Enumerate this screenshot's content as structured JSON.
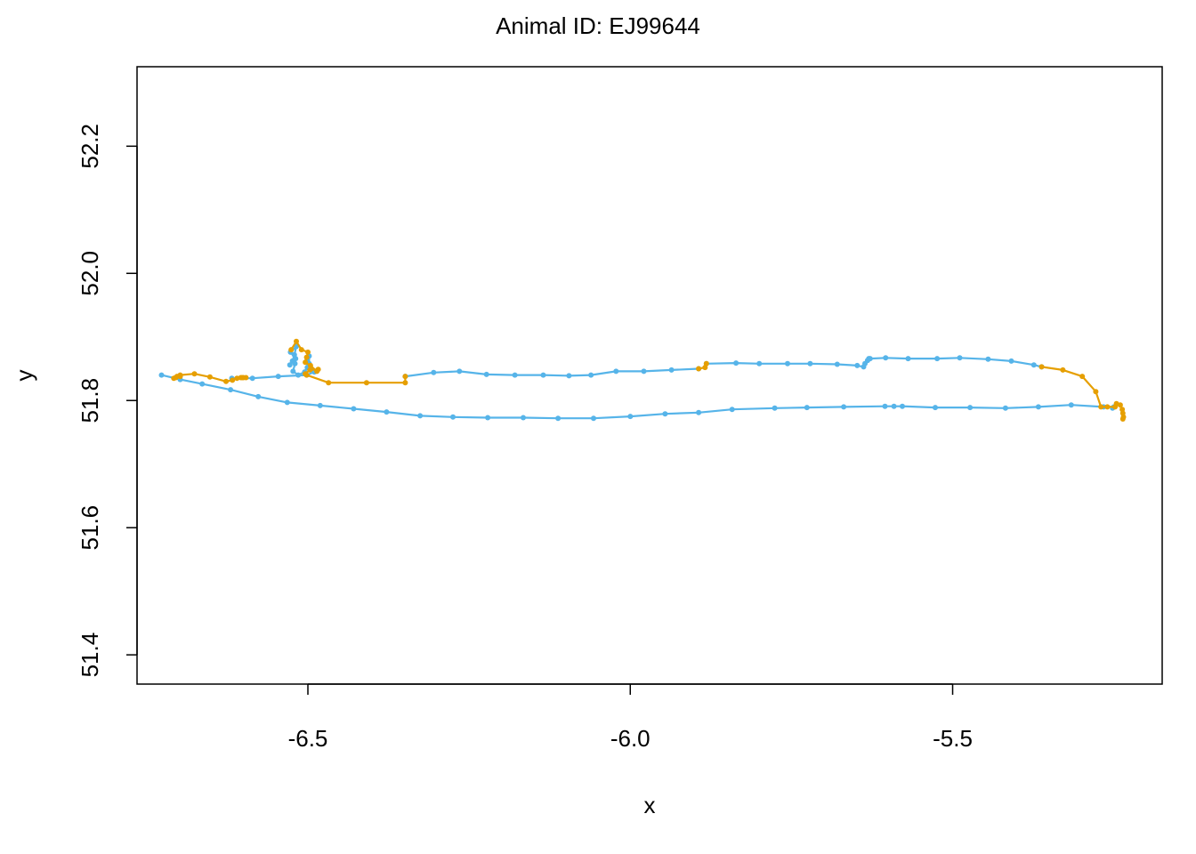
{
  "chart_data": {
    "type": "line",
    "title": "Animal ID: EJ99644",
    "xlabel": "x",
    "ylabel": "y",
    "xlim": [
      -6.765,
      -5.175
    ],
    "ylim": [
      51.354,
      52.325
    ],
    "x_ticks": [
      -6.5,
      -6.0,
      -5.5
    ],
    "x_tick_labels": [
      "-6.5",
      "-6.0",
      "-5.5"
    ],
    "y_ticks": [
      51.4,
      51.6,
      51.8,
      52.0,
      52.2
    ],
    "y_tick_labels": [
      "51.4",
      "51.6",
      "51.8",
      "52.0",
      "52.2"
    ],
    "grid": false,
    "legend": "none",
    "series": [
      {
        "color": "#56B4E9",
        "points": [
          [
            -6.727,
            51.84
          ],
          [
            -6.698,
            51.833
          ],
          [
            -6.664,
            51.826
          ],
          [
            -6.62,
            51.817
          ],
          [
            -6.577,
            51.806
          ],
          [
            -6.532,
            51.797
          ],
          [
            -6.481,
            51.792
          ],
          [
            -6.429,
            51.787
          ],
          [
            -6.378,
            51.782
          ],
          [
            -6.326,
            51.776
          ],
          [
            -6.275,
            51.774
          ],
          [
            -6.221,
            51.773
          ],
          [
            -6.166,
            51.773
          ],
          [
            -6.112,
            51.772
          ],
          [
            -6.057,
            51.772
          ],
          [
            -6.0,
            51.775
          ],
          [
            -5.946,
            51.779
          ],
          [
            -5.894,
            51.781
          ],
          [
            -5.842,
            51.786
          ],
          [
            -5.776,
            51.788
          ],
          [
            -5.726,
            51.789
          ],
          [
            -5.669,
            51.79
          ],
          [
            -5.605,
            51.791
          ],
          [
            -5.591,
            51.791
          ],
          [
            -5.578,
            51.791
          ],
          [
            -5.527,
            51.789
          ],
          [
            -5.473,
            51.789
          ],
          [
            -5.418,
            51.788
          ],
          [
            -5.367,
            51.79
          ],
          [
            -5.316,
            51.793
          ],
          [
            -5.266,
            51.79
          ],
          [
            -5.25,
            51.79
          ],
          [
            -5.252,
            51.788
          ],
          null,
          [
            -6.618,
            51.835
          ],
          [
            -6.586,
            51.835
          ],
          [
            -6.546,
            51.838
          ],
          [
            -6.502,
            51.84
          ],
          [
            -6.49,
            51.845
          ],
          [
            -6.498,
            51.858
          ],
          [
            -6.498,
            51.87
          ],
          [
            -6.501,
            51.865
          ],
          [
            -6.501,
            51.852
          ],
          [
            -6.505,
            51.845
          ],
          [
            -6.515,
            51.84
          ],
          [
            -6.523,
            51.846
          ],
          [
            -6.52,
            51.858
          ],
          [
            -6.519,
            51.866
          ],
          [
            -6.527,
            51.876
          ],
          [
            -6.518,
            51.885
          ],
          [
            -6.521,
            51.872
          ],
          [
            -6.524,
            51.862
          ],
          [
            -6.528,
            51.856
          ],
          null,
          [
            -6.349,
            51.838
          ],
          [
            -6.305,
            51.844
          ],
          [
            -6.265,
            51.846
          ],
          [
            -6.223,
            51.841
          ],
          [
            -6.179,
            51.84
          ],
          [
            -6.135,
            51.84
          ],
          [
            -6.095,
            51.839
          ],
          [
            -6.061,
            51.84
          ],
          [
            -6.022,
            51.846
          ],
          [
            -5.979,
            51.846
          ],
          [
            -5.936,
            51.848
          ],
          [
            -5.894,
            51.85
          ],
          null,
          [
            -5.882,
            51.858
          ],
          [
            -5.836,
            51.859
          ],
          [
            -5.8,
            51.858
          ],
          [
            -5.756,
            51.858
          ],
          [
            -5.721,
            51.858
          ],
          [
            -5.679,
            51.857
          ],
          [
            -5.648,
            51.855
          ],
          [
            -5.638,
            51.853
          ],
          [
            -5.636,
            51.858
          ],
          [
            -5.632,
            51.863
          ],
          [
            -5.63,
            51.866
          ],
          [
            -5.628,
            51.866
          ],
          [
            -5.604,
            51.867
          ],
          [
            -5.569,
            51.866
          ],
          [
            -5.524,
            51.866
          ],
          [
            -5.489,
            51.867
          ],
          [
            -5.445,
            51.865
          ],
          [
            -5.409,
            51.862
          ],
          [
            -5.374,
            51.856
          ],
          [
            -5.362,
            51.853
          ]
        ]
      },
      {
        "color": "#E69F00",
        "points": [
          [
            -6.698,
            51.838
          ],
          [
            -6.705,
            51.836
          ],
          [
            -6.708,
            51.835
          ],
          [
            -6.703,
            51.838
          ],
          [
            -6.698,
            51.84
          ],
          [
            -6.676,
            51.842
          ],
          [
            -6.652,
            51.837
          ],
          [
            -6.627,
            51.83
          ],
          [
            -6.617,
            51.832
          ],
          [
            -6.61,
            51.835
          ],
          [
            -6.604,
            51.836
          ],
          [
            -6.602,
            51.836
          ],
          [
            -6.6,
            51.836
          ],
          [
            -6.596,
            51.836
          ],
          null,
          [
            -6.526,
            51.88
          ],
          [
            -6.518,
            51.893
          ],
          [
            -6.51,
            51.88
          ],
          [
            -6.5,
            51.876
          ],
          [
            -6.502,
            51.868
          ],
          [
            -6.504,
            51.86
          ],
          [
            -6.496,
            51.855
          ],
          [
            -6.486,
            51.846
          ],
          [
            -6.484,
            51.849
          ],
          [
            -6.497,
            51.848
          ],
          [
            -6.504,
            51.842
          ],
          [
            -6.502,
            51.84
          ],
          [
            -6.468,
            51.828
          ],
          [
            -6.409,
            51.828
          ],
          [
            -6.349,
            51.828
          ],
          [
            -6.349,
            51.838
          ],
          null,
          [
            -5.894,
            51.85
          ],
          [
            -5.884,
            51.852
          ],
          [
            -5.882,
            51.858
          ],
          null,
          [
            -5.362,
            51.853
          ],
          [
            -5.329,
            51.848
          ],
          [
            -5.299,
            51.838
          ],
          [
            -5.278,
            51.814
          ],
          [
            -5.27,
            51.79
          ],
          [
            -5.26,
            51.79
          ],
          [
            -5.248,
            51.79
          ],
          [
            -5.246,
            51.795
          ],
          [
            -5.24,
            51.793
          ],
          [
            -5.237,
            51.786
          ],
          [
            -5.236,
            51.78
          ],
          [
            -5.235,
            51.774
          ],
          [
            -5.236,
            51.771
          ]
        ]
      }
    ]
  }
}
